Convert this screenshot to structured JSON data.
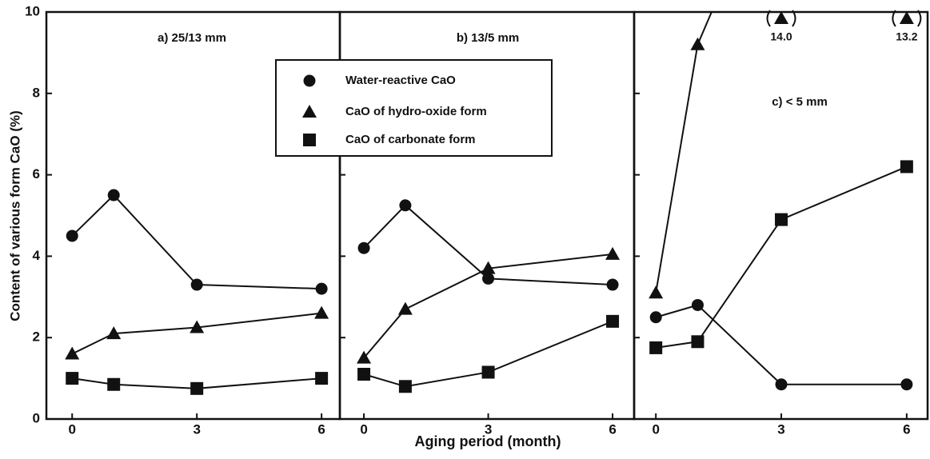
{
  "chart_data": [
    {
      "type": "line",
      "title": "a) 25/13 mm",
      "ylabel": "Content of various form CaO (%)",
      "x": [
        0,
        1,
        3,
        6
      ],
      "xlim": [
        -0.62,
        6.44
      ],
      "xticks": [
        0,
        3,
        6
      ],
      "ylim": [
        0,
        10
      ],
      "yticks": [
        0,
        2,
        4,
        6,
        8,
        10
      ],
      "series": [
        {
          "name": "Water-reactive CaO",
          "marker": "circle",
          "color": "#111",
          "values": [
            4.5,
            5.5,
            3.3,
            3.2
          ]
        },
        {
          "name": "CaO of hydro-oxide form",
          "marker": "triangle",
          "color": "#111",
          "values": [
            1.6,
            2.1,
            2.25,
            2.6
          ]
        },
        {
          "name": "CaO of carbonate form",
          "marker": "square",
          "color": "#111",
          "values": [
            1.0,
            0.85,
            0.75,
            1.0
          ]
        }
      ]
    },
    {
      "type": "line",
      "title": "b) 13/5 mm",
      "xlabel": "Aging period (month)",
      "x": [
        0,
        1,
        3,
        6
      ],
      "xlim": [
        -0.58,
        6.52
      ],
      "xticks": [
        0,
        3,
        6
      ],
      "ylim": [
        0,
        10
      ],
      "yticks": [
        0,
        2,
        4,
        6,
        8,
        10
      ],
      "series": [
        {
          "name": "Water-reactive CaO",
          "marker": "circle",
          "color": "#111",
          "values": [
            4.2,
            5.25,
            3.45,
            3.3
          ]
        },
        {
          "name": "CaO of hydro-oxide form",
          "marker": "triangle",
          "color": "#111",
          "values": [
            1.5,
            2.7,
            3.7,
            4.05
          ]
        },
        {
          "name": "CaO of carbonate form",
          "marker": "square",
          "color": "#111",
          "values": [
            1.1,
            0.8,
            1.15,
            2.4
          ]
        }
      ]
    },
    {
      "type": "line",
      "title": "c) < 5 mm",
      "x": [
        0,
        1,
        3,
        6
      ],
      "xlim": [
        -0.52,
        6.5
      ],
      "xticks": [
        0,
        3,
        6
      ],
      "ylim": [
        0,
        10
      ],
      "yticks": [
        0,
        2,
        4,
        6,
        8,
        10
      ],
      "series": [
        {
          "name": "Water-reactive CaO",
          "marker": "circle",
          "color": "#111",
          "values": [
            2.5,
            2.8,
            0.85,
            0.85
          ]
        },
        {
          "name": "CaO of hydro-oxide form",
          "marker": "triangle",
          "color": "#111",
          "values": [
            3.1,
            9.2,
            14.0,
            13.2
          ],
          "value_labels": [
            null,
            null,
            "14.0",
            "13.2"
          ]
        },
        {
          "name": "CaO of carbonate form",
          "marker": "square",
          "color": "#111",
          "values": [
            1.75,
            1.9,
            4.9,
            6.2
          ]
        }
      ]
    }
  ]
}
